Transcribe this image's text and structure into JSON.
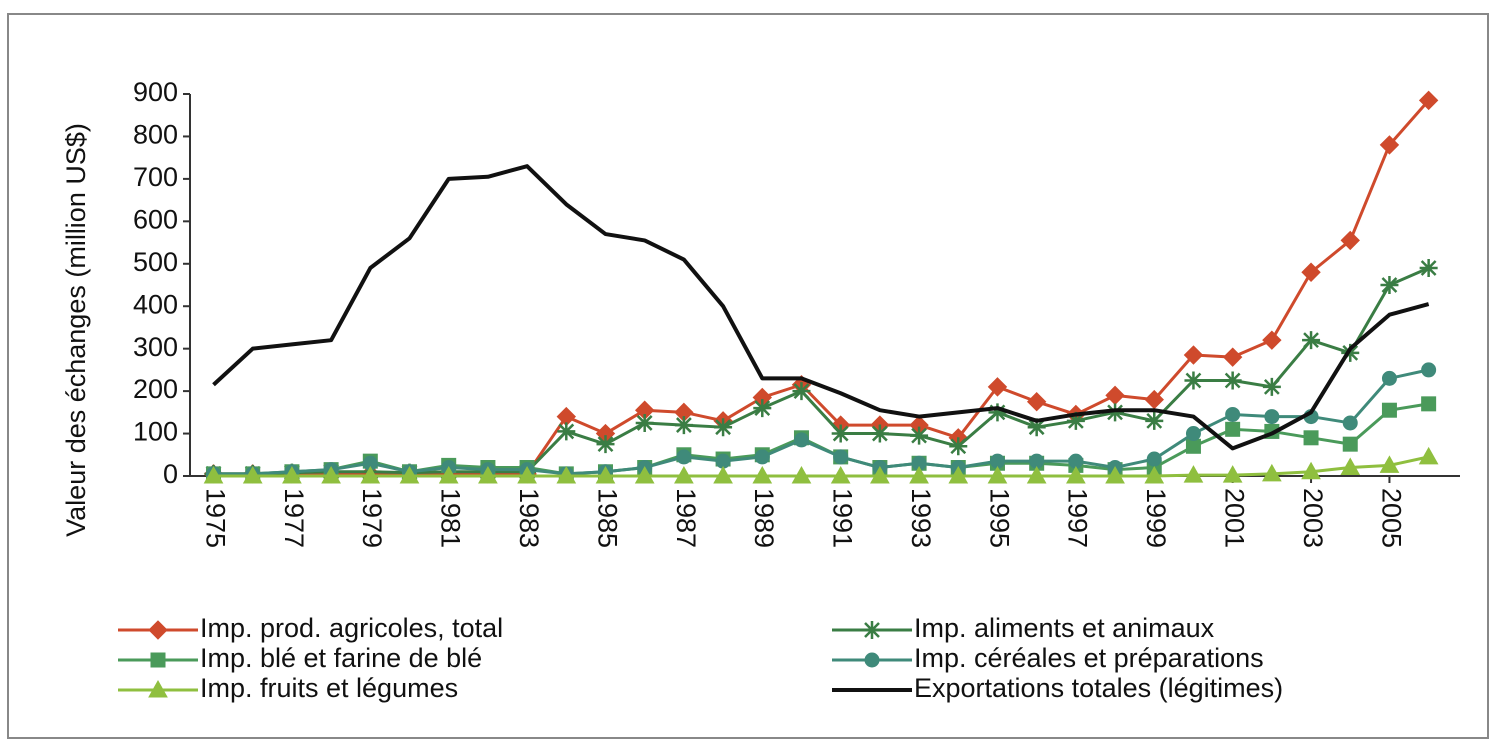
{
  "chart_data": {
    "type": "line",
    "y_label": "Valeur des échanges (million US$)",
    "x": [
      1975,
      1976,
      1977,
      1978,
      1979,
      1980,
      1981,
      1982,
      1983,
      1984,
      1985,
      1986,
      1987,
      1988,
      1989,
      1990,
      1991,
      1992,
      1993,
      1994,
      1995,
      1996,
      1997,
      1998,
      1999,
      2000,
      2001,
      2002,
      2003,
      2004,
      2005,
      2006
    ],
    "xlim": [
      1974.4,
      2006.8
    ],
    "xticks": [
      1975,
      1977,
      1979,
      1981,
      1983,
      1985,
      1987,
      1989,
      1991,
      1993,
      1995,
      1997,
      1999,
      2001,
      2003,
      2005
    ],
    "ylim": [
      0,
      900
    ],
    "yticks": [
      0,
      100,
      200,
      300,
      400,
      500,
      600,
      700,
      800,
      900
    ],
    "legend": "bottom",
    "series": [
      {
        "name": "Imp. prod. agricoles, total",
        "color": "#cf4a2c",
        "marker": "diamond",
        "values": [
          5,
          5,
          5,
          5,
          5,
          5,
          5,
          5,
          5,
          140,
          100,
          155,
          150,
          130,
          185,
          215,
          120,
          120,
          120,
          90,
          210,
          175,
          145,
          190,
          180,
          285,
          280,
          320,
          480,
          555,
          780,
          885
        ]
      },
      {
        "name": "Imp. aliments et animaux",
        "color": "#3a7d44",
        "marker": "star",
        "values": [
          5,
          5,
          8,
          10,
          10,
          8,
          10,
          10,
          10,
          105,
          75,
          125,
          120,
          115,
          160,
          200,
          100,
          100,
          95,
          70,
          150,
          115,
          130,
          150,
          130,
          225,
          225,
          210,
          320,
          290,
          450,
          490
        ]
      },
      {
        "name": "Imp. blé et farine de blé",
        "color": "#4a9a5a",
        "marker": "square",
        "values": [
          5,
          5,
          10,
          15,
          35,
          10,
          25,
          20,
          20,
          5,
          10,
          20,
          50,
          40,
          50,
          90,
          45,
          20,
          30,
          20,
          30,
          30,
          25,
          15,
          20,
          70,
          110,
          105,
          90,
          75,
          155,
          170
        ]
      },
      {
        "name": "Imp. céréales et préparations",
        "color": "#3f8a7a",
        "marker": "circle",
        "values": [
          5,
          5,
          10,
          15,
          30,
          10,
          20,
          15,
          15,
          5,
          10,
          20,
          45,
          35,
          45,
          85,
          45,
          20,
          30,
          20,
          35,
          35,
          35,
          20,
          40,
          100,
          145,
          140,
          140,
          125,
          230,
          250
        ]
      },
      {
        "name": "Imp. fruits et légumes",
        "color": "#8fbf3f",
        "marker": "triangle",
        "values": [
          0,
          0,
          0,
          0,
          0,
          0,
          0,
          0,
          0,
          0,
          0,
          0,
          0,
          0,
          0,
          0,
          0,
          0,
          0,
          0,
          0,
          0,
          0,
          0,
          0,
          2,
          2,
          5,
          10,
          20,
          25,
          45
        ]
      },
      {
        "name": "Exportations totales (légitimes)",
        "color": "#111111",
        "marker": "none",
        "values": [
          215,
          300,
          310,
          320,
          490,
          560,
          700,
          705,
          730,
          640,
          570,
          555,
          510,
          400,
          230,
          230,
          195,
          155,
          140,
          150,
          160,
          130,
          145,
          155,
          155,
          140,
          65,
          100,
          150,
          300,
          380,
          405
        ]
      }
    ]
  }
}
